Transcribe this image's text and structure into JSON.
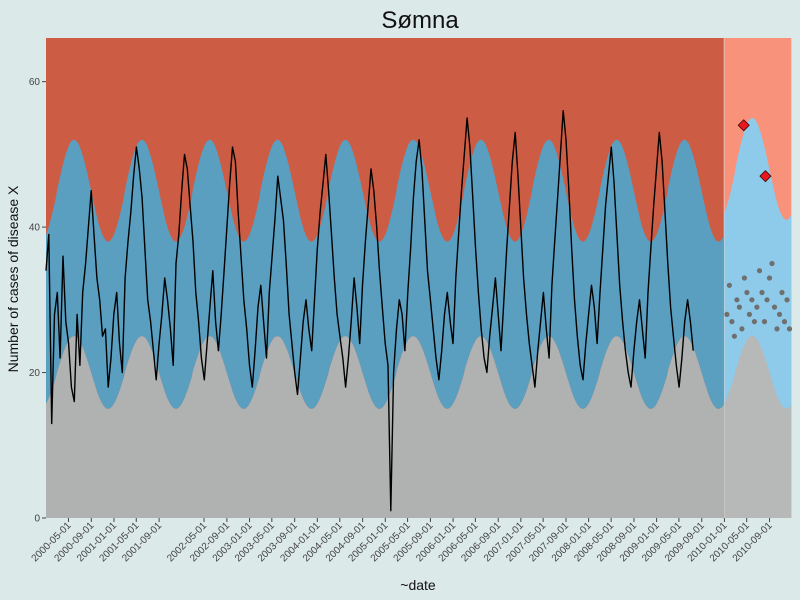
{
  "chart_data": {
    "type": "area",
    "title": "Sømna",
    "xlabel": "~date",
    "ylabel": "Number of cases of disease X",
    "ylim": [
      0,
      66
    ],
    "y_ticks": [
      0,
      20,
      40,
      60
    ],
    "x_range": [
      "2000-01-01",
      "2010-12-31"
    ],
    "x_ticks": [
      "2000-05-01",
      "2000-09-01",
      "2001-01-01",
      "2001-05-01",
      "2001-09-01",
      "2002-05-01",
      "2002-09-01",
      "2003-01-01",
      "2003-05-01",
      "2003-09-01",
      "2004-01-01",
      "2004-05-01",
      "2004-09-01",
      "2005-01-01",
      "2005-05-01",
      "2005-09-01",
      "2006-01-01",
      "2006-05-01",
      "2006-09-01",
      "2007-01-01",
      "2007-05-01",
      "2007-09-01",
      "2008-01-01",
      "2008-05-01",
      "2008-09-01",
      "2009-01-01",
      "2009-05-01",
      "2009-09-01",
      "2010-01-01",
      "2010-05-01",
      "2010-09-01"
    ],
    "prediction_start": "2010-01-01",
    "grid": false,
    "legend": "none",
    "colors": {
      "background": "#dce9e9",
      "historical_low": "#b0b2b1",
      "historical_normal": "#5a9ec0",
      "historical_high": "#cd5c45",
      "forecast_low": "#b7b9b8",
      "forecast_normal": "#8ecbea",
      "forecast_high": "#f8927a",
      "line": "#000000",
      "baseline_points": "#6f6f6f",
      "alert_marker": "#e8191e"
    },
    "threshold_model": {
      "lower_mean": 20,
      "lower_amplitude": 5,
      "upper_mean": 45,
      "upper_amplitude": 7,
      "peak_month": 5
    },
    "series": [
      {
        "values": [
          34,
          39,
          13,
          28,
          31,
          22,
          36,
          27,
          24,
          18,
          16,
          28,
          21,
          31,
          35,
          40,
          45,
          39,
          33,
          30,
          25,
          26,
          18,
          22,
          28,
          31,
          24,
          20,
          33,
          38,
          42,
          47,
          51,
          48,
          44,
          37,
          30,
          27,
          23,
          19,
          24,
          28,
          33,
          30,
          26,
          21,
          35,
          39,
          45,
          50,
          48,
          43,
          38,
          31,
          27,
          22,
          19,
          24,
          29,
          34,
          27,
          23,
          28,
          34,
          40,
          46,
          51,
          49,
          42,
          36,
          30,
          26,
          21,
          18,
          23,
          29,
          32,
          27,
          22,
          31,
          36,
          41,
          47,
          44,
          41,
          35,
          28,
          24,
          20,
          17,
          22,
          27,
          30,
          26,
          23,
          30,
          37,
          42,
          46,
          50,
          45,
          39,
          33,
          28,
          25,
          22,
          18,
          22,
          27,
          33,
          29,
          24,
          32,
          38,
          43,
          48,
          45,
          40,
          34,
          29,
          24,
          21,
          1,
          20,
          26,
          30,
          28,
          23,
          31,
          37,
          44,
          49,
          52,
          48,
          41,
          34,
          30,
          26,
          22,
          19,
          23,
          28,
          31,
          27,
          24,
          33,
          39,
          45,
          50,
          55,
          51,
          44,
          37,
          31,
          26,
          22,
          20,
          25,
          29,
          33,
          28,
          23,
          30,
          37,
          43,
          49,
          53,
          47,
          40,
          33,
          28,
          24,
          21,
          18,
          23,
          27,
          31,
          26,
          22,
          32,
          38,
          44,
          50,
          56,
          52,
          45,
          37,
          30,
          25,
          21,
          19,
          24,
          28,
          32,
          29,
          24,
          31,
          37,
          43,
          47,
          51,
          46,
          39,
          32,
          27,
          23,
          20,
          18,
          23,
          27,
          30,
          26,
          22,
          31,
          37,
          43,
          48,
          53,
          49,
          42,
          35,
          29,
          25,
          21,
          18,
          22,
          27,
          30,
          27,
          23
        ],
        "points_per_year": 24,
        "start": "2000-01-01"
      }
    ],
    "baseline_points": [
      28,
      32,
      27,
      25,
      30,
      29,
      26,
      33,
      31,
      28,
      30,
      27,
      29,
      34,
      31,
      27,
      30,
      33,
      35,
      29,
      26,
      28,
      31,
      27,
      30,
      26
    ],
    "alert_points": [
      {
        "date": "2010-04-15",
        "value": 54
      },
      {
        "date": "2010-08-10",
        "value": 47
      }
    ]
  }
}
